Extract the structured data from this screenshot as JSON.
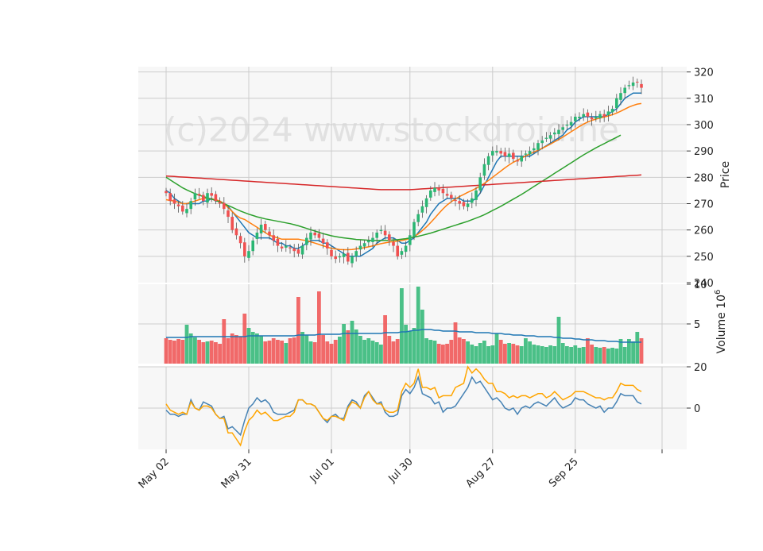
{
  "watermark": "(c)2024 www.stockdroid.ne",
  "colors": {
    "panel_bg": "#f7f7f7",
    "grid": "#cccccc",
    "up": "#2bb673",
    "down": "#f05050",
    "ma_fast": "#1f77b4",
    "ma_mid": "#ff7f0e",
    "ma_slow": "#2ca02c",
    "ma_long": "#d62728",
    "osc_a": "#4682b4",
    "osc_b": "#ffa500"
  },
  "chart_data": [
    {
      "panel": "price",
      "type": "candlestick",
      "ylabel": "Price",
      "ylim": [
        240,
        322
      ],
      "yticks": [
        240,
        250,
        260,
        270,
        280,
        290,
        300,
        310,
        320
      ],
      "x_ticks": [
        {
          "label": "May 02",
          "index": 0
        },
        {
          "label": "May 31",
          "index": 20
        },
        {
          "label": "Jul 01",
          "index": 40
        },
        {
          "label": "Jul 30",
          "index": 59
        },
        {
          "label": "Aug 27",
          "index": 79
        },
        {
          "label": "Sep 25",
          "index": 99
        }
      ],
      "close": [
        274,
        271,
        270,
        269,
        267,
        268,
        271,
        274,
        273,
        271,
        274,
        273,
        271,
        270,
        268,
        265,
        260,
        258,
        255,
        250,
        252,
        256,
        259,
        262,
        260,
        258,
        256,
        254,
        253,
        254,
        253,
        252,
        251,
        254,
        257,
        259,
        258,
        257,
        255,
        253,
        250,
        249,
        250,
        251,
        248,
        250,
        252,
        254,
        255,
        256,
        257,
        259,
        260,
        258,
        256,
        254,
        250,
        252,
        254,
        258,
        263,
        266,
        269,
        272,
        275,
        276,
        275,
        274,
        273,
        272,
        271,
        270,
        269,
        270,
        272,
        275,
        280,
        285,
        288,
        290,
        290,
        289,
        288,
        289,
        287,
        286,
        288,
        289,
        290,
        291,
        293,
        294,
        295,
        296,
        297,
        298,
        299,
        300,
        301,
        303,
        303,
        304,
        303,
        302,
        303,
        304,
        303,
        305,
        306,
        310,
        312,
        314,
        315,
        316,
        316,
        314
      ]
    },
    {
      "panel": "price",
      "type": "line",
      "series": [
        {
          "name": "",
          "color": "ma_fast",
          "values": [
            275,
            274,
            272,
            271,
            270,
            270,
            270,
            270,
            270,
            271,
            271,
            272,
            271,
            271,
            270,
            269,
            267,
            265,
            263,
            261,
            259,
            258,
            257,
            257,
            257,
            257,
            256,
            255,
            255,
            254,
            254,
            253,
            253,
            254,
            255,
            256,
            256,
            256,
            255,
            255,
            254,
            253,
            252,
            251,
            250,
            250,
            250,
            250,
            251,
            252,
            253,
            255,
            256,
            257,
            257,
            257,
            256,
            255,
            255,
            256,
            257,
            259,
            261,
            263,
            266,
            268,
            270,
            271,
            272,
            272,
            272,
            272,
            271,
            271,
            271,
            272,
            274,
            277,
            280,
            283,
            286,
            288,
            288,
            288,
            288,
            288,
            288,
            288,
            288,
            289,
            290,
            291,
            292,
            293,
            294,
            295,
            296,
            298,
            299,
            301,
            302,
            303,
            303,
            303,
            303,
            303,
            303,
            304,
            305,
            306,
            308,
            310,
            311,
            312,
            312,
            312
          ]
        },
        {
          "name": "",
          "color": "ma_mid",
          "values": [
            271.5,
            271.2,
            271,
            270.5,
            270,
            270,
            270.5,
            271,
            271.5,
            272,
            272,
            271.8,
            271.5,
            271,
            270,
            268.5,
            267,
            265.5,
            264.5,
            264,
            263,
            262,
            261,
            260,
            259,
            258,
            257.5,
            257,
            256.5,
            256.5,
            256.5,
            256.5,
            256.5,
            256.2,
            256,
            255.5,
            255,
            254.5,
            254,
            253.5,
            253,
            252.8,
            252.6,
            252.5,
            252.5,
            252.6,
            252.8,
            253,
            253.3,
            253.6,
            254,
            254.4,
            254.8,
            255.1,
            255.4,
            255.6,
            255.8,
            256,
            256.3,
            256.8,
            257.5,
            258.5,
            259.8,
            261.2,
            262.8,
            264.5,
            266.3,
            268,
            269.5,
            270.7,
            271.8,
            272.7,
            273.5,
            274.3,
            275,
            275.8,
            276.7,
            277.7,
            278.8,
            280,
            281.2,
            282.4,
            283.6,
            284.7,
            285.7,
            286.5,
            287.3,
            288.1,
            288.9,
            289.6,
            290.3,
            291,
            291.8,
            292.6,
            293.5,
            294.4,
            295.3,
            296.3,
            297.3,
            298.3,
            299.3,
            300.2,
            301,
            301.6,
            302.1,
            302.5,
            302.9,
            303.3,
            303.8,
            304.4,
            305.1,
            305.9,
            306.7,
            307.3,
            307.8,
            308
          ]
        },
        {
          "name": "",
          "color": "ma_slow",
          "values": [
            280,
            279,
            278,
            277,
            276,
            275.2,
            274.5,
            273.8,
            273.2,
            272.7,
            272.2,
            271.7,
            271.2,
            270.6,
            270,
            269.3,
            268.6,
            267.9,
            267.2,
            266.6,
            266,
            265.5,
            265,
            264.6,
            264.2,
            263.9,
            263.6,
            263.3,
            263,
            262.7,
            262.4,
            262,
            261.6,
            261.1,
            260.6,
            260.1,
            259.6,
            259.1,
            258.6,
            258.2,
            257.8,
            257.5,
            257.2,
            257,
            256.8,
            256.6,
            256.4,
            256.3,
            256.2,
            256.1,
            256,
            256,
            256,
            256,
            256.1,
            256.2,
            256.3,
            256.5,
            256.7,
            257,
            257.3,
            257.6,
            258,
            258.4,
            258.8,
            259.3,
            259.8,
            260.3,
            260.8,
            261.3,
            261.8,
            262.3,
            262.8,
            263.3,
            263.9,
            264.5,
            265.1,
            265.8,
            266.6,
            267.4,
            268.2,
            269,
            269.9,
            270.8,
            271.7,
            272.6,
            273.5,
            274.5,
            275.5,
            276.5,
            277.5,
            278.5,
            279.5,
            280.5,
            281.5,
            282.5,
            283.5,
            284.5,
            285.5,
            286.5,
            287.5,
            288.5,
            289.4,
            290.3,
            291.2,
            292,
            292.8,
            293.6,
            294.4,
            295.2,
            296
          ]
        },
        {
          "name": "",
          "color": "ma_long",
          "values": [
            280.5,
            280.4,
            280.3,
            280.2,
            280.1,
            280,
            279.9,
            279.8,
            279.7,
            279.6,
            279.5,
            279.4,
            279.3,
            279.2,
            279.1,
            279,
            278.9,
            278.8,
            278.7,
            278.6,
            278.5,
            278.4,
            278.3,
            278.2,
            278.1,
            278,
            277.9,
            277.8,
            277.7,
            277.6,
            277.5,
            277.4,
            277.3,
            277.2,
            277.1,
            277,
            276.9,
            276.8,
            276.7,
            276.6,
            276.5,
            276.4,
            276.3,
            276.2,
            276.1,
            276,
            275.9,
            275.8,
            275.7,
            275.6,
            275.5,
            275.4,
            275.3,
            275.3,
            275.3,
            275.3,
            275.3,
            275.3,
            275.3,
            275.3,
            275.4,
            275.5,
            275.6,
            275.7,
            275.8,
            275.9,
            276,
            276.1,
            276.2,
            276.3,
            276.4,
            276.5,
            276.6,
            276.7,
            276.8,
            276.9,
            277,
            277.1,
            277.2,
            277.3,
            277.4,
            277.5,
            277.6,
            277.7,
            277.8,
            277.9,
            278,
            278.1,
            278.2,
            278.3,
            278.4,
            278.5,
            278.6,
            278.7,
            278.8,
            278.9,
            279,
            279.1,
            279.2,
            279.3,
            279.4,
            279.5,
            279.6,
            279.7,
            279.8,
            279.9,
            280,
            280.1,
            280.2,
            280.3,
            280.4,
            280.5,
            280.6,
            280.7,
            280.8,
            280.9
          ]
        }
      ]
    },
    {
      "panel": "volume",
      "type": "bar",
      "ylabel": "Volume  10",
      "ylabel_exp": "6",
      "ylim": [
        0,
        10
      ],
      "yticks": [
        5,
        10
      ],
      "values": [
        3.2,
        3.0,
        2.9,
        3.1,
        3.0,
        4.9,
        3.8,
        3.3,
        3.0,
        2.7,
        2.8,
        2.9,
        2.7,
        2.5,
        5.6,
        3.2,
        3.8,
        3.6,
        3.4,
        6.3,
        4.5,
        4.0,
        3.8,
        3.5,
        2.8,
        2.9,
        3.2,
        3.0,
        2.9,
        2.6,
        3.2,
        3.3,
        8.4,
        4.0,
        3.6,
        2.8,
        2.7,
        9.1,
        3.6,
        2.8,
        2.5,
        3.0,
        3.4,
        5.0,
        4.2,
        5.4,
        4.3,
        3.5,
        3.0,
        3.2,
        2.9,
        2.7,
        2.4,
        6.1,
        3.5,
        2.8,
        3.1,
        9.5,
        4.9,
        4.1,
        4.5,
        9.7,
        6.8,
        3.2,
        3.0,
        2.9,
        2.5,
        2.4,
        2.5,
        3.0,
        5.2,
        3.3,
        3.1,
        2.8,
        2.4,
        2.2,
        2.6,
        2.9,
        2.2,
        2.3,
        3.8,
        3.0,
        2.5,
        2.6,
        2.5,
        2.3,
        2.2,
        3.2,
        2.8,
        2.4,
        2.3,
        2.2,
        2.1,
        2.3,
        2.2,
        5.9,
        2.6,
        2.2,
        2.1,
        2.3,
        2.0,
        2.1,
        3.2,
        2.4,
        2.1,
        2.0,
        2.1,
        1.9,
        2.0,
        1.9,
        3.1,
        2.1,
        3.1,
        2.8,
        4.0,
        3.2
      ],
      "avg_line": [
        3.3,
        3.3,
        3.3,
        3.3,
        3.3,
        3.3,
        3.4,
        3.4,
        3.4,
        3.4,
        3.4,
        3.4,
        3.4,
        3.4,
        3.4,
        3.4,
        3.4,
        3.4,
        3.4,
        3.4,
        3.5,
        3.5,
        3.5,
        3.5,
        3.5,
        3.5,
        3.5,
        3.5,
        3.5,
        3.5,
        3.5,
        3.5,
        3.6,
        3.6,
        3.6,
        3.6,
        3.6,
        3.7,
        3.7,
        3.7,
        3.7,
        3.7,
        3.7,
        3.8,
        3.8,
        3.8,
        3.8,
        3.8,
        3.8,
        3.8,
        3.8,
        3.8,
        3.8,
        3.9,
        3.9,
        3.9,
        3.9,
        4.0,
        4.0,
        4.1,
        4.2,
        4.2,
        4.3,
        4.3,
        4.3,
        4.2,
        4.2,
        4.1,
        4.1,
        4.1,
        4.1,
        4.0,
        4.0,
        4.0,
        4.0,
        3.9,
        3.9,
        3.9,
        3.9,
        3.8,
        3.8,
        3.8,
        3.7,
        3.7,
        3.6,
        3.6,
        3.6,
        3.5,
        3.5,
        3.5,
        3.4,
        3.4,
        3.4,
        3.4,
        3.3,
        3.3,
        3.2,
        3.2,
        3.2,
        3.1,
        3.1,
        3.0,
        3.0,
        3.0,
        2.9,
        2.9,
        2.9,
        2.8,
        2.8,
        2.8,
        2.7,
        2.7,
        2.7,
        2.7,
        2.7,
        2.7
      ]
    },
    {
      "panel": "oscillator",
      "type": "line",
      "ylim": [
        -20,
        20
      ],
      "yticks": [
        0,
        20
      ],
      "series": [
        {
          "name": "",
          "color": "osc_a",
          "values": [
            -1,
            -3,
            -3,
            -4,
            -3,
            -3,
            4,
            0,
            -1,
            3,
            2,
            1,
            -3,
            -5,
            -4,
            -10,
            -9,
            -11,
            -13,
            -6,
            0,
            2,
            5,
            3,
            4,
            2,
            -2,
            -3,
            -3,
            -3,
            -2,
            -1,
            4,
            4,
            2,
            2,
            1,
            -2,
            -5,
            -7,
            -4,
            -3,
            -5,
            -5,
            1,
            4,
            3,
            0,
            6,
            8,
            5,
            2,
            3,
            -2,
            -4,
            -4,
            -3,
            6,
            9,
            7,
            10,
            15,
            7,
            6,
            5,
            2,
            3,
            -2,
            0,
            0,
            1,
            4,
            7,
            10,
            15,
            12,
            13,
            10,
            7,
            4,
            5,
            3,
            0,
            -1,
            0,
            -3,
            0,
            1,
            0,
            2,
            3,
            2,
            1,
            3,
            5,
            2,
            0,
            1,
            2,
            5,
            4,
            4,
            2,
            1,
            0,
            1,
            -2,
            0,
            0,
            3,
            7,
            6,
            6,
            6,
            3,
            2
          ]
        },
        {
          "name": "",
          "color": "osc_b",
          "values": [
            2,
            -1,
            -2,
            -3,
            -2,
            -3,
            3,
            0,
            -1,
            1,
            1,
            0,
            -3,
            -5,
            -5,
            -12,
            -12,
            -15,
            -18,
            -11,
            -6,
            -4,
            -1,
            -3,
            -2,
            -4,
            -6,
            -6,
            -5,
            -4,
            -4,
            -2,
            4,
            4,
            2,
            2,
            1,
            -2,
            -5,
            -6,
            -4,
            -4,
            -5,
            -6,
            0,
            3,
            2,
            0,
            5,
            8,
            4,
            2,
            2,
            -1,
            -2,
            -2,
            -1,
            8,
            12,
            10,
            12,
            19,
            10,
            10,
            9,
            10,
            5,
            6,
            6,
            6,
            10,
            11,
            12,
            20,
            17,
            19,
            17,
            14,
            12,
            12,
            8,
            8,
            7,
            5,
            6,
            5,
            6,
            6,
            5,
            6,
            7,
            7,
            5,
            6,
            8,
            6,
            4,
            5,
            6,
            8,
            8,
            8,
            7,
            6,
            5,
            5,
            4,
            5,
            5,
            8,
            12,
            11,
            11,
            11,
            9,
            8
          ]
        }
      ]
    }
  ]
}
